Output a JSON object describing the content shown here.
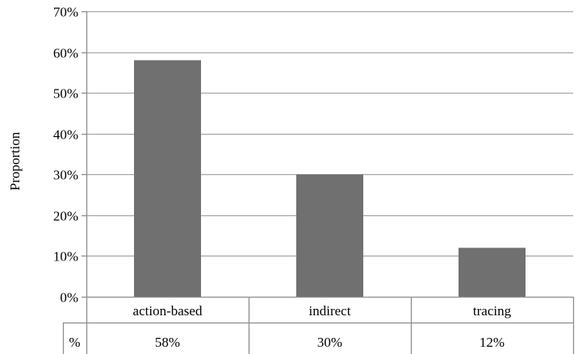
{
  "chart_data": {
    "type": "bar",
    "title": "",
    "xlabel": "",
    "ylabel": "Proportion",
    "ylim": [
      0,
      0.7
    ],
    "yticks": [
      0,
      0.1,
      0.2,
      0.3,
      0.4,
      0.5,
      0.6,
      0.7
    ],
    "ytick_labels": [
      "0%",
      "10%",
      "20%",
      "30%",
      "40%",
      "50%",
      "60%",
      "70%"
    ],
    "categories": [
      "action-based",
      "indirect",
      "tracing"
    ],
    "values": [
      0.58,
      0.3,
      0.12
    ],
    "grid": true,
    "legend": "none",
    "data_table": {
      "row_header": "%",
      "cells": [
        "58%",
        "30%",
        "12%"
      ]
    },
    "colors": {
      "bar": "#707070",
      "grid": "#a6a6a6",
      "axis": "#8c8c8c"
    }
  }
}
